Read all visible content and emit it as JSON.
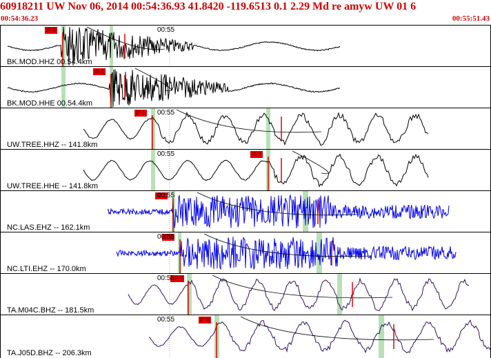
{
  "header": {
    "title": "60918211 UW Nov 06, 2014 00:54:36.93   41.8420 -119.6513  0.1 2.29 Md re amyw UW 01   6",
    "start_time": "00:54:36.23",
    "end_time": "00:55:51.43"
  },
  "colors": {
    "header_text": "#d40000",
    "pick": "#e00000",
    "phase_window": "#b8e0b8",
    "blue_trace": "#0000ee",
    "purple_trace": "#30105a"
  },
  "traces": [
    {
      "label": "BK.MOD.HHZ 00.54.4km",
      "tick": "00:55",
      "pick_label": "iP 0",
      "color": "#000000",
      "kind": "burst"
    },
    {
      "label": "BK.MOD.HHE 00.54.4km",
      "tick": "",
      "pick_label": "iS 1",
      "color": "#000000",
      "kind": "burst"
    },
    {
      "label": "UW.TREE.HHZ -- 141.8km",
      "tick": "00:55",
      "pick_label": "iP 1",
      "color": "#000000",
      "kind": "wave"
    },
    {
      "label": "UW.TREE.HHE -- 141.8km",
      "tick": "00:55",
      "pick_label": "iS 2",
      "color": "#000000",
      "kind": "wave"
    },
    {
      "label": "NC.LAS.EHZ -- 162.1km",
      "tick": "00:55",
      "pick_label": "iP 1",
      "color": "#0000ee",
      "kind": "noise"
    },
    {
      "label": "NC.LTI.EHZ -- 170.0km",
      "tick": "00:55",
      "pick_label": "iP 2",
      "color": "#0000ee",
      "kind": "noise"
    },
    {
      "label": "TA.M04C.BHZ -- 181.5km",
      "tick": "00:55",
      "pick_label": "eP 2",
      "color": "#30105a",
      "kind": "wave"
    },
    {
      "label": "TA.J05D.BHZ -- 206.3km",
      "tick": "00:55",
      "pick_label": "iP 0",
      "color": "#30105a",
      "kind": "wave"
    }
  ]
}
